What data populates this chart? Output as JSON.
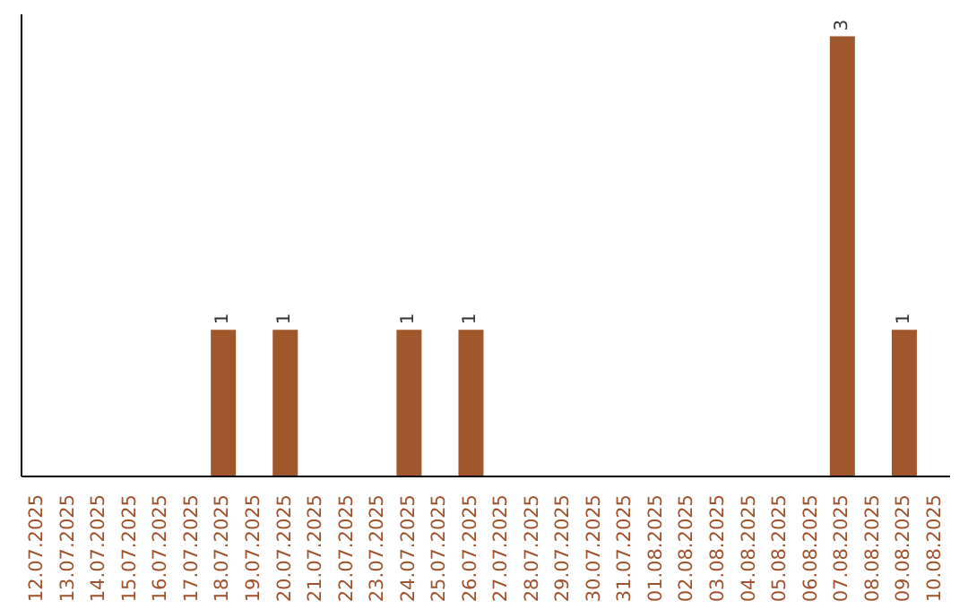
{
  "chart_data": {
    "type": "bar",
    "categories": [
      "12.07.2025",
      "13.07.2025",
      "14.07.2025",
      "15.07.2025",
      "16.07.2025",
      "17.07.2025",
      "18.07.2025",
      "19.07.2025",
      "20.07.2025",
      "21.07.2025",
      "22.07.2025",
      "23.07.2025",
      "24.07.2025",
      "25.07.2025",
      "26.07.2025",
      "27.07.2025",
      "28.07.2025",
      "29.07.2025",
      "30.07.2025",
      "31.07.2025",
      "01.08.2025",
      "02.08.2025",
      "03.08.2025",
      "04.08.2025",
      "05.08.2025",
      "06.08.2025",
      "07.08.2025",
      "08.08.2025",
      "09.08.2025",
      "10.08.2025"
    ],
    "values": [
      0,
      0,
      0,
      0,
      0,
      0,
      1,
      0,
      1,
      0,
      0,
      0,
      1,
      0,
      1,
      0,
      0,
      0,
      0,
      0,
      0,
      0,
      0,
      0,
      0,
      0,
      3,
      0,
      1,
      0
    ],
    "value_labels": [
      null,
      null,
      null,
      null,
      null,
      null,
      "1",
      null,
      "1",
      null,
      null,
      null,
      "1",
      null,
      "1",
      null,
      null,
      null,
      null,
      null,
      null,
      null,
      null,
      null,
      null,
      null,
      "3",
      null,
      "1",
      null
    ],
    "color": "#a0572b",
    "tick_labels": "x",
    "grid": false,
    "legend": false
  }
}
